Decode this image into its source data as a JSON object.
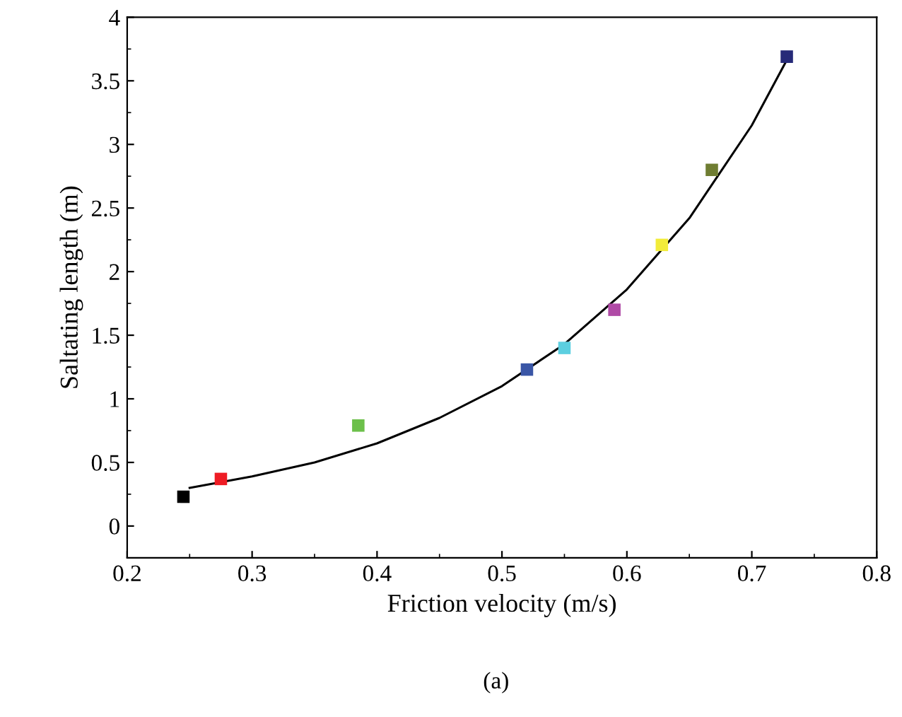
{
  "chart_data": {
    "type": "scatter",
    "xlabel": "Friction velocity (m/s)",
    "ylabel": "Saltating length (m)",
    "annotations": [
      "(a)"
    ],
    "xlim": [
      0.2,
      0.8
    ],
    "xticks": [
      0.2,
      0.3,
      0.4,
      0.5,
      0.6,
      0.7,
      0.8
    ],
    "ylim": [
      -0.25,
      4
    ],
    "yticks": [
      0,
      0.5,
      1,
      1.5,
      2,
      2.5,
      3,
      3.5,
      4
    ],
    "grid": false,
    "legend": false,
    "marker": "square",
    "series": [
      {
        "x": [
          0.245,
          0.275,
          0.385,
          0.52,
          0.55,
          0.59,
          0.628,
          0.668,
          0.728
        ],
        "values": [
          0.23,
          0.37,
          0.79,
          1.23,
          1.4,
          1.7,
          2.21,
          2.8,
          3.69
        ],
        "colors": [
          "#000000",
          "#ee1c24",
          "#6cc04a",
          "#3a56a6",
          "#5ccfe0",
          "#b04aa6",
          "#f2ec3a",
          "#6f7d32",
          "#262a78"
        ]
      },
      {
        "type": "line",
        "color": "#000000",
        "marker": "none",
        "x": [
          0.25,
          0.3,
          0.35,
          0.4,
          0.45,
          0.5,
          0.55,
          0.6,
          0.65,
          0.7,
          0.73
        ],
        "values": [
          0.3,
          0.39,
          0.5,
          0.65,
          0.85,
          1.1,
          1.43,
          1.86,
          2.42,
          3.15,
          3.7
        ]
      }
    ]
  }
}
